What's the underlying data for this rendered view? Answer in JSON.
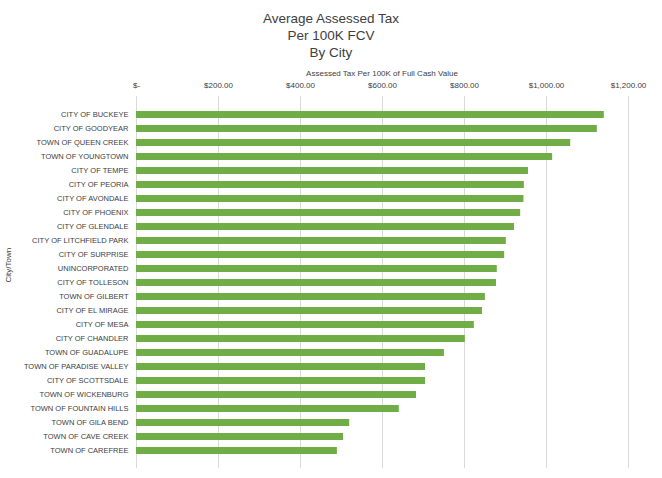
{
  "chart_data": {
    "type": "bar",
    "orientation": "horizontal",
    "title": "Average Assessed Tax",
    "subtitle": [
      "Per 100K FCV",
      "By City"
    ],
    "xlabel": "Assessed Tax Per 100K of Full Cash Value",
    "ylabel": "City/Town",
    "categories": [
      "CITY OF BUCKEYE",
      "CITY OF GOODYEAR",
      "TOWN OF QUEEN CREEK",
      "TOWN OF YOUNGTOWN",
      "CITY OF TEMPE",
      "CITY OF PEORIA",
      "CITY OF AVONDALE",
      "CITY OF PHOENIX",
      "CITY OF GLENDALE",
      "CITY OF LITCHFIELD PARK",
      "CITY OF SURPRISE",
      "UNINCORPORATED",
      "CITY OF TOLLESON",
      "TOWN OF GILBERT",
      "CITY OF EL MIRAGE",
      "CITY OF MESA",
      "CITY OF CHANDLER",
      "TOWN OF GUADALUPE",
      "TOWN OF PARADISE VALLEY",
      "CITY OF SCOTTSDALE",
      "TOWN OF WICKENBURG",
      "TOWN OF FOUNTAIN HILLS",
      "TOWN OF GILA BEND",
      "TOWN OF CAVE CREEK",
      "TOWN OF CAREFREE"
    ],
    "values": [
      1141,
      1124,
      1059,
      1015,
      956,
      946,
      945,
      937,
      922,
      902,
      898,
      880,
      878,
      851,
      844,
      824,
      802,
      751,
      705,
      705,
      683,
      641,
      520,
      505,
      490
    ],
    "color": "#70ad47",
    "xlim": [
      0,
      1200
    ],
    "xticks": [
      {
        "value": 0,
        "label": "$-"
      },
      {
        "value": 200,
        "label": "$200.00"
      },
      {
        "value": 400,
        "label": "$400.00"
      },
      {
        "value": 600,
        "label": "$600.00"
      },
      {
        "value": 800,
        "label": "$800.00"
      },
      {
        "value": 1000,
        "label": "$1,000.00"
      },
      {
        "value": 1200,
        "label": "$1,200.00"
      }
    ],
    "grid": true
  }
}
